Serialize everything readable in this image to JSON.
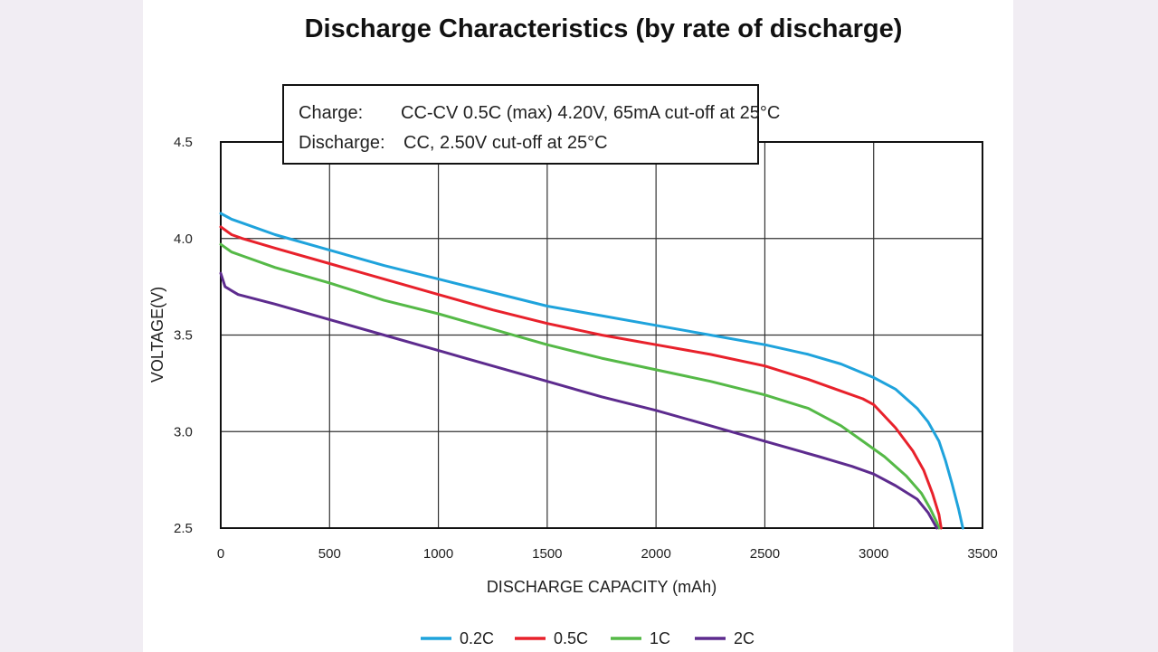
{
  "chart_data": {
    "type": "line",
    "title": "Discharge Characteristics (by rate of discharge)",
    "annotation": {
      "line1_label": "Charge:",
      "line1_text": "CC-CV 0.5C (max) 4.20V, 65mA cut-off at 25°C",
      "line2_label": "Discharge:",
      "line2_text": "CC, 2.50V cut-off at 25°C"
    },
    "xlabel": "DISCHARGE CAPACITY (mAh)",
    "ylabel": "VOLTAGE(V)",
    "xlim": [
      0,
      3500
    ],
    "ylim": [
      2.5,
      4.5
    ],
    "xticks": [
      0,
      500,
      1000,
      1500,
      2000,
      2500,
      3000,
      3500
    ],
    "yticks": [
      2.5,
      3.0,
      3.5,
      4.0,
      4.5
    ],
    "ytick_labels": [
      "2.5",
      "3.0",
      "3.5",
      "4.0",
      "4.5"
    ],
    "grid": true,
    "legend_position": "bottom",
    "series": [
      {
        "name": "0.2C",
        "color": "#1fa3dc",
        "x": [
          0,
          50,
          100,
          250,
          500,
          750,
          1000,
          1250,
          1500,
          1750,
          2000,
          2250,
          2500,
          2700,
          2850,
          3000,
          3100,
          3200,
          3250,
          3300,
          3330,
          3360,
          3390,
          3410
        ],
        "y": [
          4.13,
          4.1,
          4.08,
          4.02,
          3.94,
          3.86,
          3.79,
          3.72,
          3.65,
          3.6,
          3.55,
          3.5,
          3.45,
          3.4,
          3.35,
          3.28,
          3.22,
          3.12,
          3.05,
          2.95,
          2.85,
          2.73,
          2.6,
          2.5
        ]
      },
      {
        "name": "0.5C",
        "color": "#e8212b",
        "x": [
          0,
          50,
          100,
          250,
          500,
          750,
          1000,
          1250,
          1500,
          1750,
          2000,
          2250,
          2500,
          2700,
          2850,
          2950,
          3000,
          3100,
          3180,
          3230,
          3270,
          3300,
          3310
        ],
        "y": [
          4.06,
          4.02,
          4.0,
          3.95,
          3.87,
          3.79,
          3.71,
          3.63,
          3.56,
          3.5,
          3.45,
          3.4,
          3.34,
          3.27,
          3.21,
          3.17,
          3.14,
          3.02,
          2.9,
          2.8,
          2.68,
          2.57,
          2.5
        ]
      },
      {
        "name": "1C",
        "color": "#55b947",
        "x": [
          0,
          50,
          100,
          250,
          500,
          750,
          1000,
          1250,
          1500,
          1750,
          2000,
          2250,
          2500,
          2700,
          2850,
          2950,
          3050,
          3150,
          3220,
          3260,
          3290,
          3300
        ],
        "y": [
          3.97,
          3.93,
          3.91,
          3.85,
          3.77,
          3.68,
          3.61,
          3.53,
          3.45,
          3.38,
          3.32,
          3.26,
          3.19,
          3.12,
          3.03,
          2.95,
          2.87,
          2.77,
          2.68,
          2.6,
          2.53,
          2.5
        ]
      },
      {
        "name": "2C",
        "color": "#5d2b8e",
        "x": [
          0,
          20,
          50,
          80,
          250,
          500,
          750,
          1000,
          1250,
          1500,
          1750,
          2000,
          2250,
          2500,
          2750,
          2900,
          3000,
          3100,
          3200,
          3250,
          3280,
          3290
        ],
        "y": [
          3.82,
          3.75,
          3.73,
          3.71,
          3.66,
          3.58,
          3.5,
          3.42,
          3.34,
          3.26,
          3.18,
          3.11,
          3.03,
          2.95,
          2.87,
          2.82,
          2.78,
          2.72,
          2.65,
          2.58,
          2.52,
          2.5
        ]
      }
    ]
  }
}
